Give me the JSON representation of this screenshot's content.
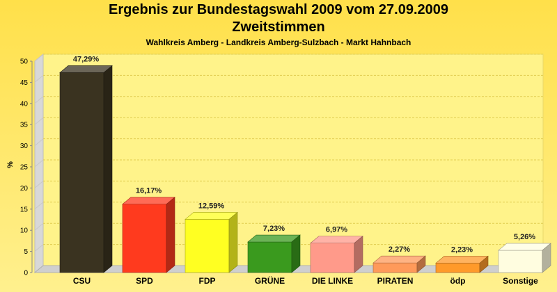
{
  "chart_data": {
    "type": "bar",
    "title": "Ergebnis zur Bundestagswahl 2009 vom 27.09.2009",
    "title_line2": "Zweitstimmen",
    "subtitle": "Wahlkreis Amberg - Landkreis Amberg-Sulzbach - Markt Hahnbach",
    "ylabel": "%",
    "ylim": [
      0,
      50
    ],
    "yticks": [
      0,
      5,
      10,
      15,
      20,
      25,
      30,
      35,
      40,
      45,
      50
    ],
    "categories": [
      "CSU",
      "SPD",
      "FDP",
      "GRÜNE",
      "DIE LINKE",
      "PIRATEN",
      "ödp",
      "Sonstige"
    ],
    "values": [
      47.29,
      16.17,
      12.59,
      7.23,
      6.97,
      2.27,
      2.23,
      5.26
    ],
    "value_labels": [
      "47,29%",
      "16,17%",
      "12,59%",
      "7,23%",
      "6,97%",
      "2,27%",
      "2,23%",
      "5,26%"
    ],
    "colors": [
      "#3a3320",
      "#ff3a1e",
      "#ffff22",
      "#3a9a1e",
      "#ff9a8a",
      "#ff9a5a",
      "#ff9a2a",
      "#fffde0"
    ],
    "grid": true,
    "style": "3d"
  }
}
